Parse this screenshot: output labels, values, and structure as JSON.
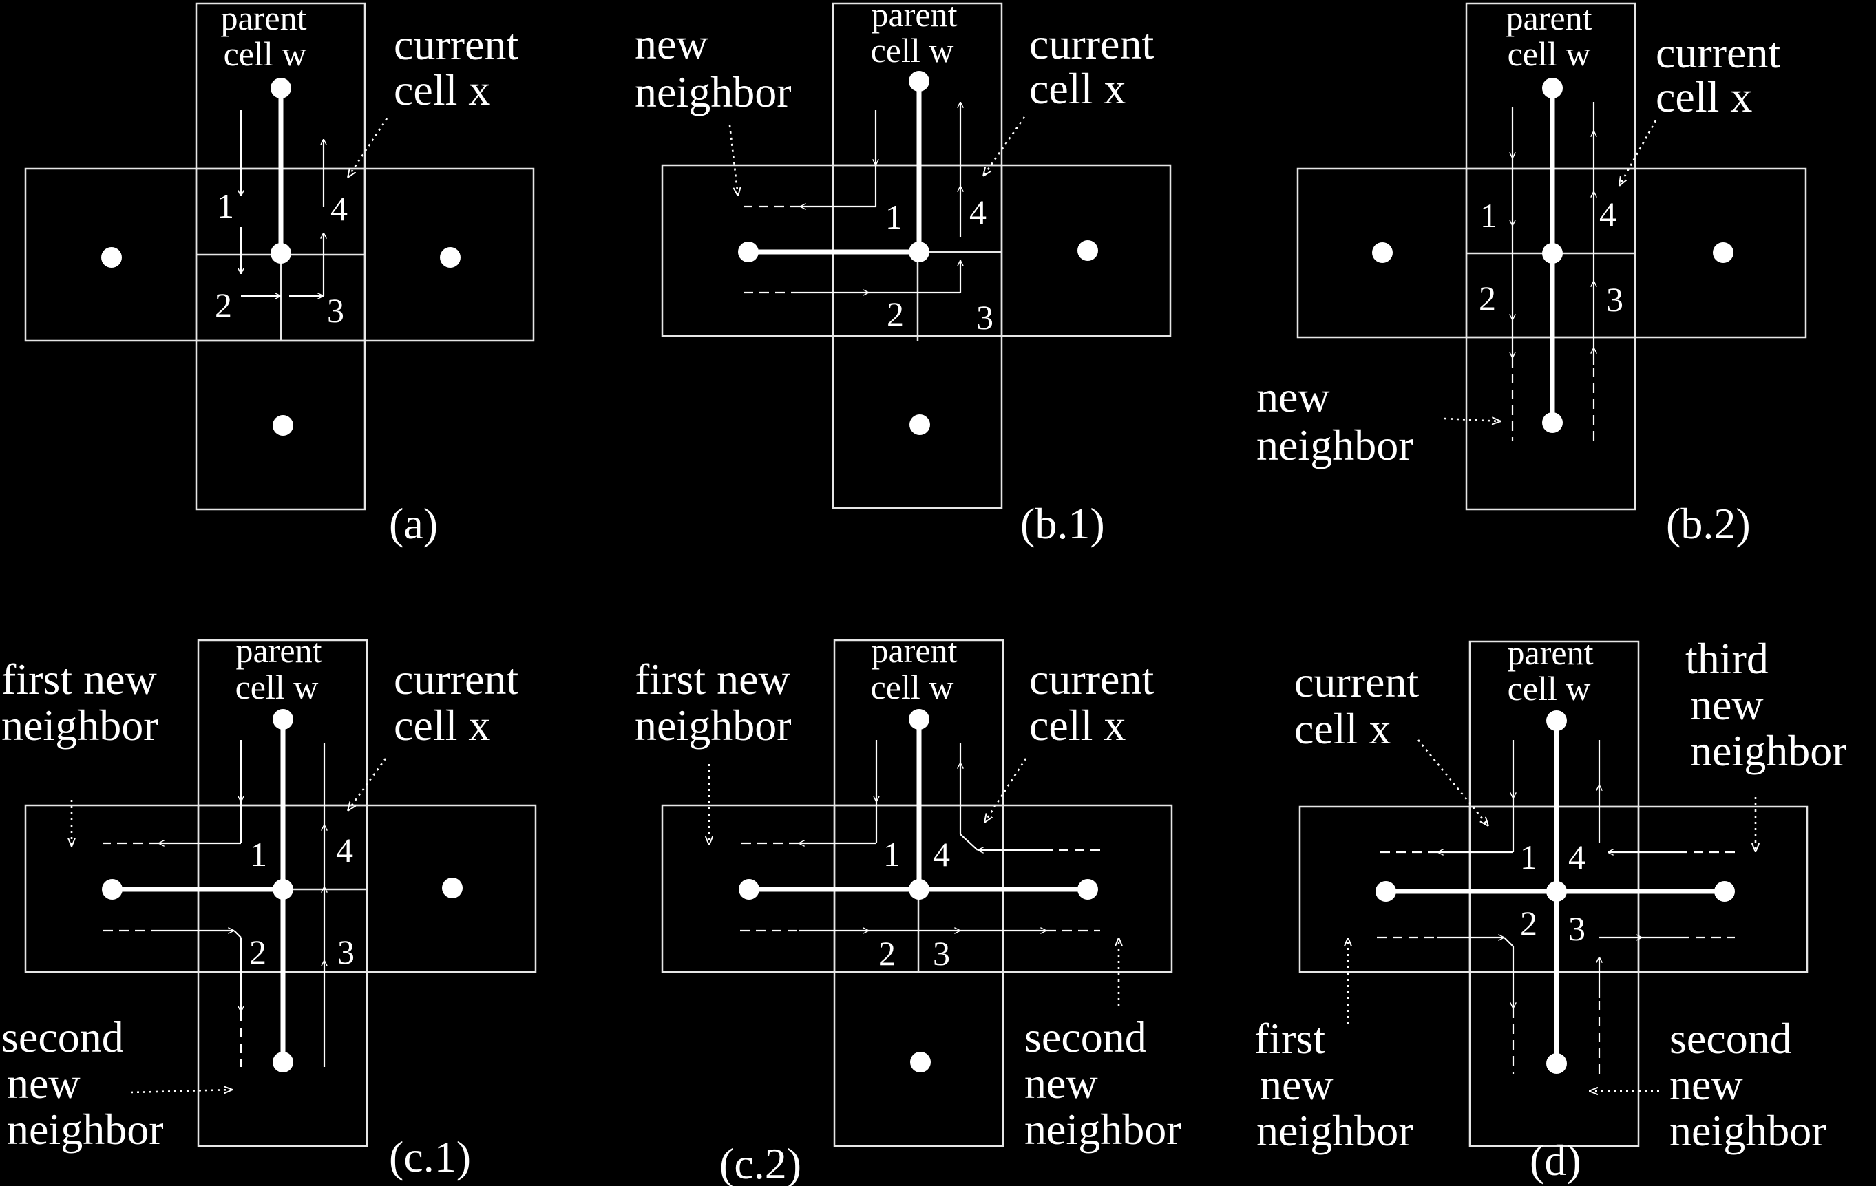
{
  "panels": {
    "a": {
      "caption": "(a)",
      "parent": [
        "parent",
        "cell w"
      ],
      "current": [
        "current",
        "cell x"
      ],
      "nums": [
        "1",
        "2",
        "3",
        "4"
      ]
    },
    "b1": {
      "caption": "(b.1)",
      "parent": [
        "parent",
        "cell w"
      ],
      "current": [
        "current",
        "cell x"
      ],
      "new_neighbor": [
        "new",
        "neighbor"
      ],
      "nums": [
        "1",
        "2",
        "3",
        "4"
      ]
    },
    "b2": {
      "caption": "(b.2)",
      "parent": [
        "parent",
        "cell w"
      ],
      "current": [
        "current",
        "cell x"
      ],
      "new_neighbor": [
        "new",
        "neighbor"
      ],
      "nums": [
        "1",
        "2",
        "3",
        "4"
      ]
    },
    "c1": {
      "caption": "(c.1)",
      "parent": [
        "parent",
        "cell w"
      ],
      "current": [
        "current",
        "cell x"
      ],
      "first": [
        "first new",
        "neighbor"
      ],
      "second": [
        "second",
        "new",
        "neighbor"
      ],
      "nums": [
        "1",
        "2",
        "3",
        "4"
      ]
    },
    "c2": {
      "caption": "(c.2)",
      "parent": [
        "parent",
        "cell w"
      ],
      "current": [
        "current",
        "cell x"
      ],
      "first": [
        "first new",
        "neighbor"
      ],
      "second": [
        "second",
        "new",
        "neighbor"
      ],
      "nums": [
        "1",
        "2",
        "3",
        "4"
      ]
    },
    "d": {
      "caption": "(d)",
      "parent": [
        "parent",
        "cell w"
      ],
      "current": [
        "current",
        "cell x"
      ],
      "first": [
        "first",
        "new",
        "neighbor"
      ],
      "second": [
        "second",
        "new",
        "neighbor"
      ],
      "third": [
        "third",
        "new",
        "neighbor"
      ],
      "nums": [
        "1",
        "2",
        "3",
        "4"
      ]
    }
  }
}
